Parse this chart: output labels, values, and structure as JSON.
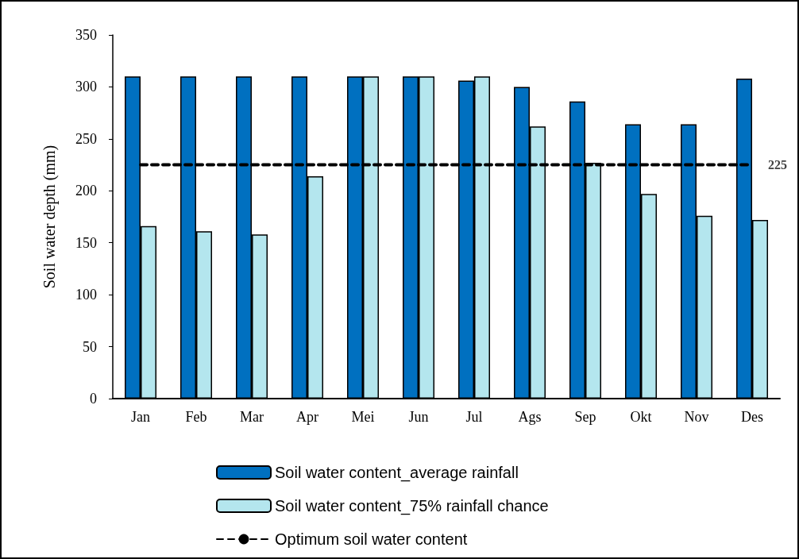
{
  "chart_data": {
    "type": "bar",
    "ylabel": "Soil water depth (mm)",
    "categories": [
      "Jan",
      "Feb",
      "Mar",
      "Apr",
      "Mei",
      "Jun",
      "Jul",
      "Ags",
      "Sep",
      "Okt",
      "Nov",
      "Des"
    ],
    "series": [
      {
        "name": "Soil water content_average rainfall",
        "color": "#0070c0",
        "values": [
          310,
          310,
          310,
          310,
          310,
          310,
          306,
          300,
          286,
          264,
          264,
          308
        ]
      },
      {
        "name": "Soil water content_75% rainfall chance",
        "color": "#b4e6ee",
        "values": [
          166,
          161,
          158,
          214,
          310,
          310,
          310,
          262,
          227,
          197,
          176,
          172
        ]
      },
      {
        "name": "Optimum soil water content",
        "type": "line",
        "color": "#000000",
        "line_style": "dashed",
        "marker": "none",
        "values": [
          225,
          225,
          225,
          225,
          225,
          225,
          225,
          225,
          225,
          225,
          225,
          225
        ],
        "value_labels": [
          null,
          null,
          null,
          null,
          null,
          null,
          null,
          null,
          null,
          null,
          null,
          "225"
        ]
      }
    ],
    "ylim": [
      0,
      350
    ],
    "yticks": [
      0,
      50,
      100,
      150,
      200,
      250,
      300,
      350
    ],
    "grid": false,
    "legend": "bottom"
  }
}
